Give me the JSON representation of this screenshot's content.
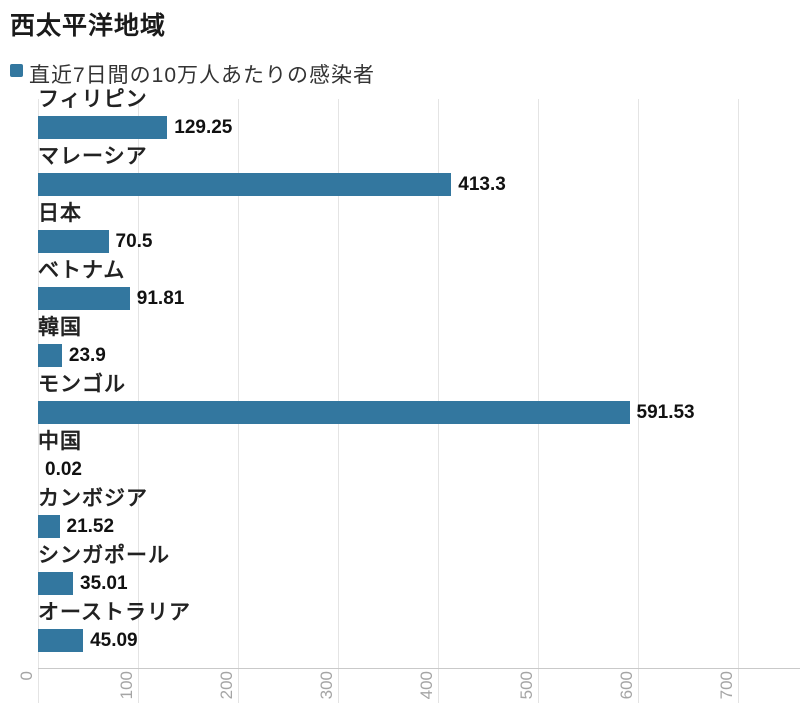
{
  "title": "西太平洋地域",
  "legend": {
    "label": "直近7日間の10万人あたりの感染者",
    "marker_color": "#33779f"
  },
  "chart_data": {
    "type": "bar",
    "orientation": "horizontal",
    "title": "西太平洋地域",
    "legend": "直近7日間の10万人あたりの感染者",
    "categories": [
      "フィリピン",
      "マレーシア",
      "日本",
      "ベトナム",
      "韓国",
      "モンゴル",
      "中国",
      "カンボジア",
      "シンガポール",
      "オーストラリア"
    ],
    "values": [
      129.25,
      413.3,
      70.5,
      91.81,
      23.9,
      591.53,
      0.02,
      21.52,
      35.01,
      45.09
    ],
    "value_labels": [
      "129.25",
      "413.3",
      "70.5",
      "91.81",
      "23.9",
      "591.53",
      "0.02",
      "21.52",
      "35.01",
      "45.09"
    ],
    "x_ticks": [
      0,
      100,
      200,
      300,
      400,
      500,
      600,
      700
    ],
    "xlim": [
      0,
      762
    ],
    "xlabel": "",
    "ylabel": "",
    "grid": true,
    "legend_position": "top",
    "bar_color": "#33779f",
    "gridline_color": "#e4e4e4",
    "axis_line_color": "#c9c9c9",
    "tick_label_color": "#a5a5a5"
  }
}
